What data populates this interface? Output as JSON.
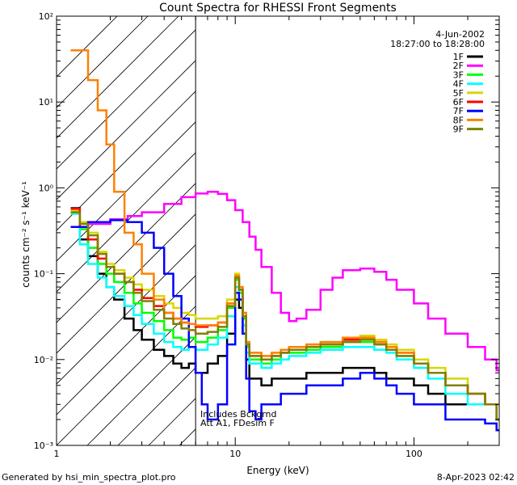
{
  "chart_data": {
    "type": "line",
    "title": "Count Spectra for RHESSI Front Segments",
    "xlabel": "Energy (keV)",
    "ylabel": "counts cm⁻² s⁻¹ keV⁻¹",
    "xscale": "log",
    "yscale": "log",
    "xlim": [
      1,
      300
    ],
    "ylim": [
      0.001,
      100
    ],
    "xticks": [
      {
        "value": 1,
        "label": "1"
      },
      {
        "value": 10,
        "label": "10"
      },
      {
        "value": 100,
        "label": "100"
      }
    ],
    "yticks": [
      {
        "value": 0.001,
        "label": "10⁻³"
      },
      {
        "value": 0.01,
        "label": "10⁻²"
      },
      {
        "value": 0.1,
        "label": "10⁻¹"
      },
      {
        "value": 1,
        "label": "10⁰"
      },
      {
        "value": 10,
        "label": "10¹"
      },
      {
        "value": 100,
        "label": "10²"
      }
    ],
    "excluded_region": {
      "x_max": 6,
      "style": "hatched"
    },
    "date": "4-Jun-2002",
    "time_range": "18:27:00 to 18:28:00",
    "annotations": [
      "Includes Bckgrnd",
      "Att A1, FDesim F"
    ],
    "legend_position": "top-right",
    "series": [
      {
        "name": "1F",
        "color": "#000000",
        "x": [
          1.2,
          1.35,
          1.5,
          1.7,
          1.9,
          2.1,
          2.4,
          2.7,
          3.0,
          3.5,
          4.0,
          4.5,
          5.0,
          5.5,
          6.0,
          7.0,
          8.0,
          9.0,
          10.0,
          10.5,
          11.0,
          11.5,
          12,
          14,
          16,
          18,
          20,
          25,
          30,
          40,
          50,
          60,
          70,
          80,
          100,
          120,
          150,
          200,
          250,
          290
        ],
        "values": [
          0.58,
          0.25,
          0.16,
          0.1,
          0.07,
          0.05,
          0.03,
          0.022,
          0.017,
          0.013,
          0.011,
          0.009,
          0.008,
          0.009,
          0.007,
          0.009,
          0.011,
          0.02,
          0.05,
          0.04,
          0.02,
          0.01,
          0.006,
          0.005,
          0.006,
          0.006,
          0.006,
          0.007,
          0.007,
          0.008,
          0.008,
          0.007,
          0.006,
          0.006,
          0.005,
          0.004,
          0.003,
          0.003,
          0.003,
          0.003
        ]
      },
      {
        "name": "2F",
        "color": "#ff00ff",
        "x": [
          1.2,
          1.5,
          2.0,
          2.5,
          3.0,
          4.0,
          5.0,
          6.0,
          7.0,
          8.0,
          9.0,
          10.0,
          11.0,
          12.0,
          13,
          14,
          16,
          18,
          20,
          22,
          25,
          30,
          35,
          40,
          50,
          60,
          70,
          80,
          100,
          120,
          150,
          200,
          250,
          290
        ],
        "values": [
          0.35,
          0.38,
          0.43,
          0.47,
          0.52,
          0.65,
          0.78,
          0.86,
          0.9,
          0.85,
          0.72,
          0.55,
          0.4,
          0.27,
          0.19,
          0.12,
          0.06,
          0.035,
          0.028,
          0.03,
          0.038,
          0.065,
          0.09,
          0.11,
          0.115,
          0.105,
          0.085,
          0.065,
          0.045,
          0.03,
          0.02,
          0.014,
          0.01,
          0.0075
        ]
      },
      {
        "name": "3F",
        "color": "#00ff00",
        "x": [
          1.2,
          1.35,
          1.5,
          1.7,
          1.9,
          2.1,
          2.4,
          2.7,
          3.0,
          3.5,
          4.0,
          4.5,
          5.0,
          5.5,
          6.0,
          7.0,
          8.0,
          9.0,
          10.0,
          10.5,
          11.0,
          11.5,
          12,
          14,
          16,
          18,
          20,
          25,
          30,
          40,
          50,
          60,
          70,
          80,
          100,
          120,
          150,
          200,
          250,
          290
        ],
        "values": [
          0.55,
          0.33,
          0.2,
          0.13,
          0.1,
          0.08,
          0.06,
          0.045,
          0.035,
          0.028,
          0.022,
          0.018,
          0.017,
          0.018,
          0.016,
          0.018,
          0.022,
          0.04,
          0.085,
          0.06,
          0.03,
          0.014,
          0.01,
          0.009,
          0.01,
          0.012,
          0.012,
          0.013,
          0.014,
          0.016,
          0.016,
          0.015,
          0.013,
          0.011,
          0.009,
          0.007,
          0.005,
          0.004,
          0.003,
          0.002
        ]
      },
      {
        "name": "4F",
        "color": "#00ffff",
        "x": [
          1.2,
          1.35,
          1.5,
          1.7,
          1.9,
          2.1,
          2.4,
          2.7,
          3.0,
          3.5,
          4.0,
          4.5,
          5.0,
          5.5,
          6.0,
          7.0,
          8.0,
          9.0,
          10.0,
          10.5,
          11.0,
          11.5,
          12,
          14,
          16,
          18,
          20,
          25,
          30,
          40,
          50,
          60,
          70,
          80,
          100,
          120,
          150,
          200,
          250,
          290
        ],
        "values": [
          0.5,
          0.22,
          0.13,
          0.09,
          0.07,
          0.055,
          0.042,
          0.033,
          0.026,
          0.02,
          0.016,
          0.014,
          0.013,
          0.014,
          0.013,
          0.015,
          0.018,
          0.032,
          0.07,
          0.05,
          0.025,
          0.012,
          0.009,
          0.008,
          0.009,
          0.01,
          0.011,
          0.012,
          0.013,
          0.014,
          0.014,
          0.013,
          0.012,
          0.01,
          0.008,
          0.006,
          0.004,
          0.003,
          0.003,
          0.002
        ]
      },
      {
        "name": "5F",
        "color": "#d8d800",
        "x": [
          1.2,
          1.35,
          1.5,
          1.7,
          1.9,
          2.1,
          2.4,
          2.7,
          3.0,
          3.5,
          4.0,
          4.5,
          5.0,
          5.5,
          6.0,
          7.0,
          8.0,
          9.0,
          10.0,
          10.5,
          11.0,
          11.5,
          12,
          14,
          16,
          18,
          20,
          25,
          30,
          40,
          50,
          60,
          70,
          80,
          100,
          120,
          150,
          200,
          250,
          290
        ],
        "values": [
          0.55,
          0.4,
          0.3,
          0.18,
          0.13,
          0.11,
          0.09,
          0.075,
          0.065,
          0.055,
          0.045,
          0.04,
          0.035,
          0.033,
          0.03,
          0.03,
          0.032,
          0.05,
          0.1,
          0.07,
          0.035,
          0.016,
          0.012,
          0.011,
          0.012,
          0.013,
          0.014,
          0.015,
          0.016,
          0.018,
          0.019,
          0.017,
          0.015,
          0.013,
          0.01,
          0.008,
          0.006,
          0.004,
          0.003,
          0.003
        ]
      },
      {
        "name": "6F",
        "color": "#ff0000",
        "x": [
          1.2,
          1.35,
          1.5,
          1.7,
          1.9,
          2.1,
          2.4,
          2.7,
          3.0,
          3.5,
          4.0,
          4.5,
          5.0,
          5.5,
          6.0,
          7.0,
          8.0,
          9.0,
          10.0,
          10.5,
          11.0,
          11.5,
          12,
          14,
          16,
          18,
          20,
          25,
          30,
          40,
          50,
          60,
          70,
          80,
          100,
          120,
          150,
          200,
          250,
          290
        ],
        "values": [
          0.57,
          0.35,
          0.25,
          0.15,
          0.12,
          0.1,
          0.08,
          0.065,
          0.052,
          0.042,
          0.035,
          0.03,
          0.027,
          0.026,
          0.024,
          0.025,
          0.027,
          0.045,
          0.09,
          0.065,
          0.032,
          0.015,
          0.011,
          0.01,
          0.011,
          0.012,
          0.013,
          0.014,
          0.015,
          0.017,
          0.017,
          0.016,
          0.014,
          0.012,
          0.009,
          0.007,
          0.005,
          0.004,
          0.003,
          0.002
        ]
      },
      {
        "name": "7F",
        "color": "#0000ff",
        "x": [
          1.2,
          1.5,
          2.0,
          2.5,
          3.0,
          3.5,
          4.0,
          4.5,
          5.0,
          5.5,
          6.0,
          6.5,
          7.0,
          8.0,
          9.0,
          10.0,
          10.5,
          11.0,
          11.5,
          12,
          13,
          14,
          16,
          18,
          20,
          25,
          30,
          40,
          50,
          60,
          70,
          80,
          100,
          120,
          150,
          200,
          250,
          290
        ],
        "values": [
          0.35,
          0.4,
          0.42,
          0.4,
          0.3,
          0.2,
          0.1,
          0.055,
          0.03,
          0.014,
          0.007,
          0.003,
          0.002,
          0.003,
          0.015,
          0.06,
          0.05,
          0.02,
          0.006,
          0.0025,
          0.002,
          0.003,
          0.003,
          0.004,
          0.004,
          0.005,
          0.005,
          0.006,
          0.007,
          0.006,
          0.005,
          0.004,
          0.003,
          0.003,
          0.002,
          0.002,
          0.0018,
          0.0015
        ]
      },
      {
        "name": "8F",
        "color": "#ff8000",
        "x": [
          1.2,
          1.35,
          1.5,
          1.7,
          1.9,
          2.1,
          2.4,
          2.7,
          3.0,
          3.5,
          4.0,
          4.5,
          5.0,
          5.5,
          6.0,
          7.0,
          8.0,
          9.0,
          10.0,
          10.5,
          11.0,
          11.5,
          12,
          14,
          16,
          18,
          20,
          25,
          30,
          40,
          50,
          60,
          70,
          80,
          100,
          120,
          150,
          200,
          250,
          290
        ],
        "values": [
          40,
          40,
          18,
          8.0,
          3.2,
          0.9,
          0.3,
          0.22,
          0.1,
          0.05,
          0.035,
          0.03,
          0.027,
          0.026,
          0.025,
          0.025,
          0.027,
          0.045,
          0.095,
          0.07,
          0.035,
          0.016,
          0.012,
          0.011,
          0.012,
          0.013,
          0.014,
          0.015,
          0.016,
          0.018,
          0.018,
          0.016,
          0.014,
          0.012,
          0.009,
          0.007,
          0.005,
          0.004,
          0.003,
          0.002
        ]
      },
      {
        "name": "9F",
        "color": "#808000",
        "x": [
          1.2,
          1.35,
          1.5,
          1.7,
          1.9,
          2.1,
          2.4,
          2.7,
          3.0,
          3.5,
          4.0,
          4.5,
          5.0,
          5.5,
          6.0,
          7.0,
          8.0,
          9.0,
          10.0,
          10.5,
          11.0,
          11.5,
          12,
          14,
          16,
          18,
          20,
          25,
          30,
          40,
          50,
          60,
          70,
          80,
          100,
          120,
          150,
          200,
          250,
          290
        ],
        "values": [
          0.52,
          0.38,
          0.28,
          0.17,
          0.12,
          0.1,
          0.08,
          0.06,
          0.048,
          0.038,
          0.03,
          0.026,
          0.023,
          0.022,
          0.02,
          0.021,
          0.024,
          0.042,
          0.09,
          0.065,
          0.032,
          0.015,
          0.011,
          0.01,
          0.011,
          0.012,
          0.013,
          0.014,
          0.015,
          0.016,
          0.017,
          0.015,
          0.013,
          0.011,
          0.009,
          0.007,
          0.005,
          0.004,
          0.003,
          0.002
        ]
      }
    ]
  },
  "footer": {
    "left": "Generated by hsi_min_spectra_plot.pro",
    "right": "8-Apr-2023 02:42"
  }
}
